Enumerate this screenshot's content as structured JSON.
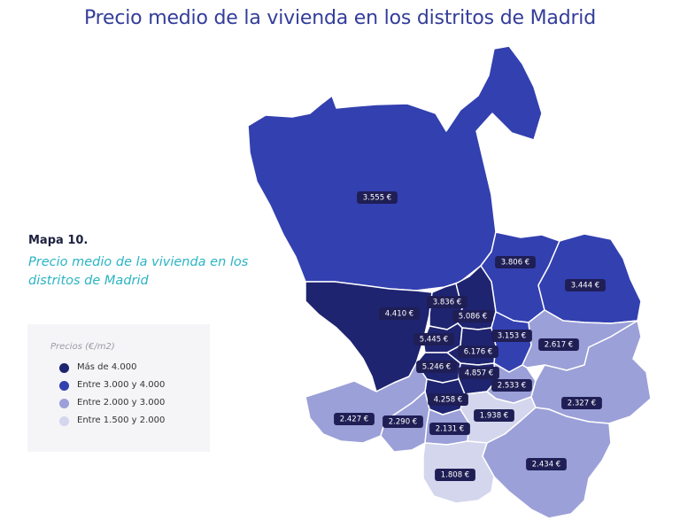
{
  "title": "Precio medio de la vivienda en los distritos de Madrid",
  "map_label": "Mapa 10.",
  "map_subtitle": "Precio medio de la vivienda en los distritos de Madrid",
  "legend": {
    "title": "Precios (€/m2)",
    "items": [
      {
        "label": "Más de 4.000",
        "color": "#1f2470"
      },
      {
        "label": "Entre 3.000 y 4.000",
        "color": "#3340b0"
      },
      {
        "label": "Entre 2.000 y 3.000",
        "color": "#9ba0d8"
      },
      {
        "label": "Entre 1.500 y 2.000",
        "color": "#d4d6ee"
      }
    ]
  },
  "prices": {
    "fuencarral": "3.555 €",
    "hortaleza": "3.806 €",
    "barajas": "3.444 €",
    "moncloa": "4.410 €",
    "tetuan": "3.836 €",
    "chamartin": "5.086 €",
    "chamberi": "5.445 €",
    "salamanca": "6.176 €",
    "ciudad_lineal": "3.153 €",
    "san_blas": "2.617 €",
    "centro": "5.246 €",
    "retiro": "4.857 €",
    "moratalaz": "2.533 €",
    "arganzuela": "4.258 €",
    "latina": "2.427 €",
    "carabanchel": "2.290 €",
    "usera": "2.131 €",
    "puente_vallecas": "1.938 €",
    "vicalvaro": "2.327 €",
    "villa_vallecas": "2.434 €",
    "villaverde": "1.808 €"
  }
}
